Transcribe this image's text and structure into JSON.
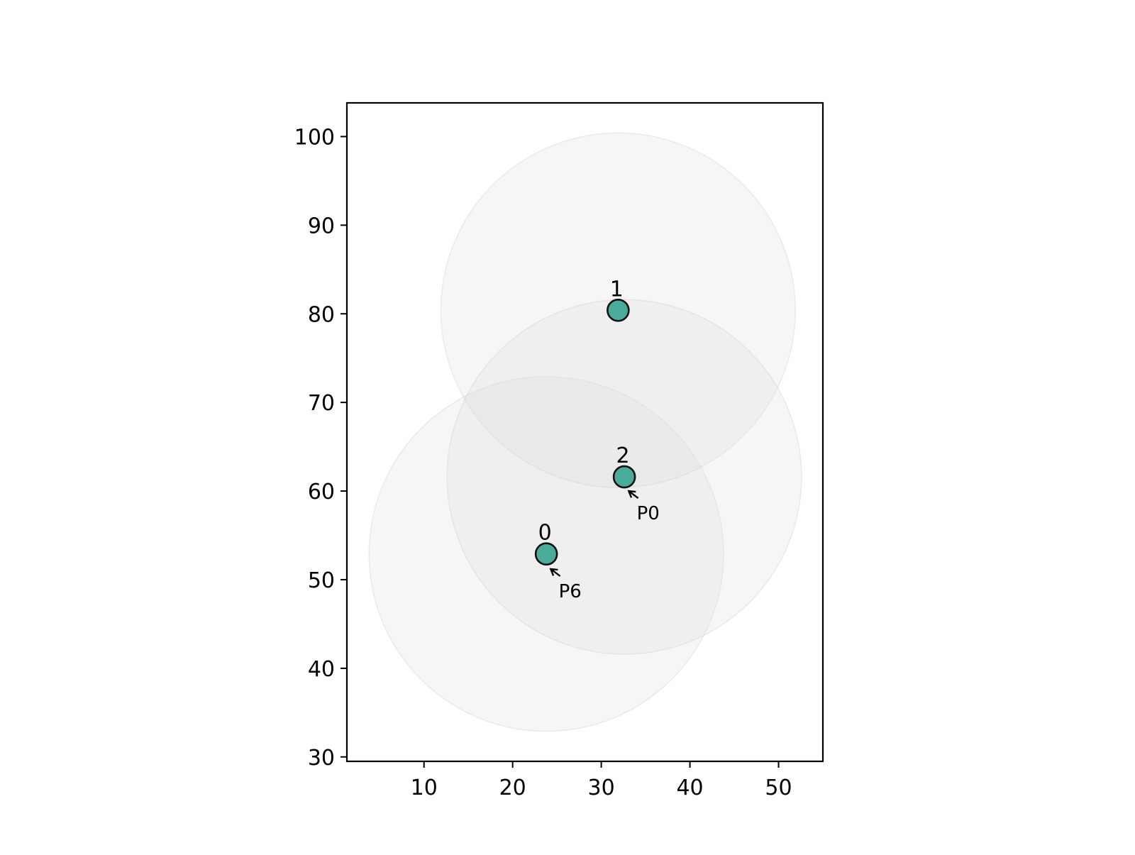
{
  "chart_data": {
    "type": "scatter",
    "title": "",
    "xlabel": "",
    "ylabel": "",
    "xlim": [
      1.3,
      55.0
    ],
    "ylim": [
      29.5,
      103.8
    ],
    "xticks": [
      10,
      20,
      30,
      40,
      50
    ],
    "yticks": [
      30,
      40,
      50,
      60,
      70,
      80,
      90,
      100
    ],
    "grid": false,
    "nodes": [
      {
        "label": "0",
        "x": 23.8,
        "y": 52.9
      },
      {
        "label": "1",
        "x": 31.9,
        "y": 80.4
      },
      {
        "label": "2",
        "x": 32.6,
        "y": 61.6
      }
    ],
    "coverage_radius": 20.0,
    "annotations": [
      {
        "text": "P6",
        "x": 24.3,
        "y": 51.2,
        "text_x": 25.2,
        "text_y": 48.0
      },
      {
        "text": "P0",
        "x": 33.1,
        "y": 60.0,
        "text_x": 34.0,
        "text_y": 56.8
      }
    ],
    "colors": {
      "node_fill": "#4aab9b",
      "node_edge": "#111111",
      "coverage_fill": "#dddddd",
      "axis": "#000000"
    }
  }
}
